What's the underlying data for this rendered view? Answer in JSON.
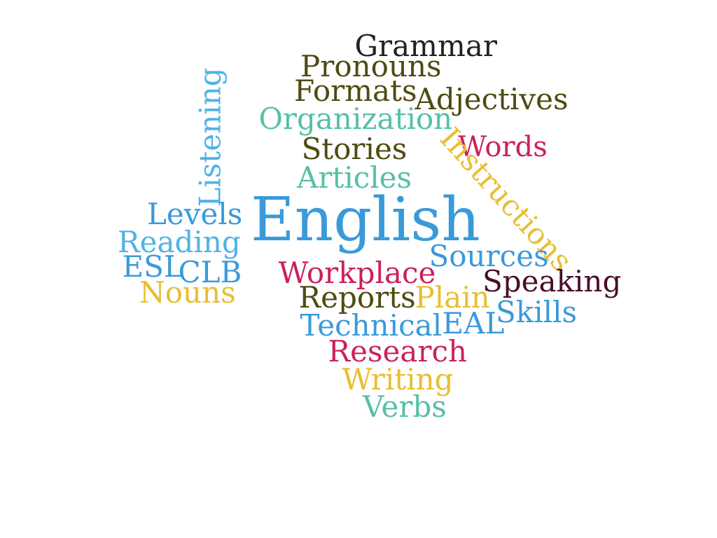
{
  "words": [
    {
      "text": "English",
      "color": "#3a9ad9",
      "weight": 1.0
    },
    {
      "text": "Grammar",
      "color": "#222222",
      "weight": 0.45
    },
    {
      "text": "Pronouns",
      "color": "#4f4a12",
      "weight": 0.45
    },
    {
      "text": "Formats",
      "color": "#4f4a12",
      "weight": 0.45
    },
    {
      "text": "Adjectives",
      "color": "#4f4a12",
      "weight": 0.45
    },
    {
      "text": "Organization",
      "color": "#57bfa7",
      "weight": 0.45
    },
    {
      "text": "Words",
      "color": "#cc1f5f",
      "weight": 0.42
    },
    {
      "text": "Stories",
      "color": "#4f4a12",
      "weight": 0.45
    },
    {
      "text": "Articles",
      "color": "#57bfa7",
      "weight": 0.45
    },
    {
      "text": "Listening",
      "color": "#4fb3e8",
      "weight": 0.45
    },
    {
      "text": "Instructions",
      "color": "#e8be32",
      "weight": 0.45
    },
    {
      "text": "Levels",
      "color": "#3a9ad9",
      "weight": 0.45
    },
    {
      "text": "Reading",
      "color": "#4fb3e8",
      "weight": 0.45
    },
    {
      "text": "ESL",
      "color": "#3a9ad9",
      "weight": 0.45
    },
    {
      "text": "CLB",
      "color": "#3a9ad9",
      "weight": 0.45
    },
    {
      "text": "Nouns",
      "color": "#e8be32",
      "weight": 0.45
    },
    {
      "text": "Sources",
      "color": "#3a9ad9",
      "weight": 0.45
    },
    {
      "text": "Workplace",
      "color": "#cc1f5f",
      "weight": 0.45
    },
    {
      "text": "Speaking",
      "color": "#4a0e2a",
      "weight": 0.45
    },
    {
      "text": "Reports",
      "color": "#4f4a12",
      "weight": 0.45
    },
    {
      "text": "Plain",
      "color": "#e8be32",
      "weight": 0.45
    },
    {
      "text": "Skills",
      "color": "#3a9ad9",
      "weight": 0.45
    },
    {
      "text": "Technical",
      "color": "#3a9ad9",
      "weight": 0.45
    },
    {
      "text": "EAL",
      "color": "#3a9ad9",
      "weight": 0.45
    },
    {
      "text": "Research",
      "color": "#cc1f5f",
      "weight": 0.45
    },
    {
      "text": "Writing",
      "color": "#e8be32",
      "weight": 0.45
    },
    {
      "text": "Verbs",
      "color": "#57bfa7",
      "weight": 0.45
    }
  ]
}
